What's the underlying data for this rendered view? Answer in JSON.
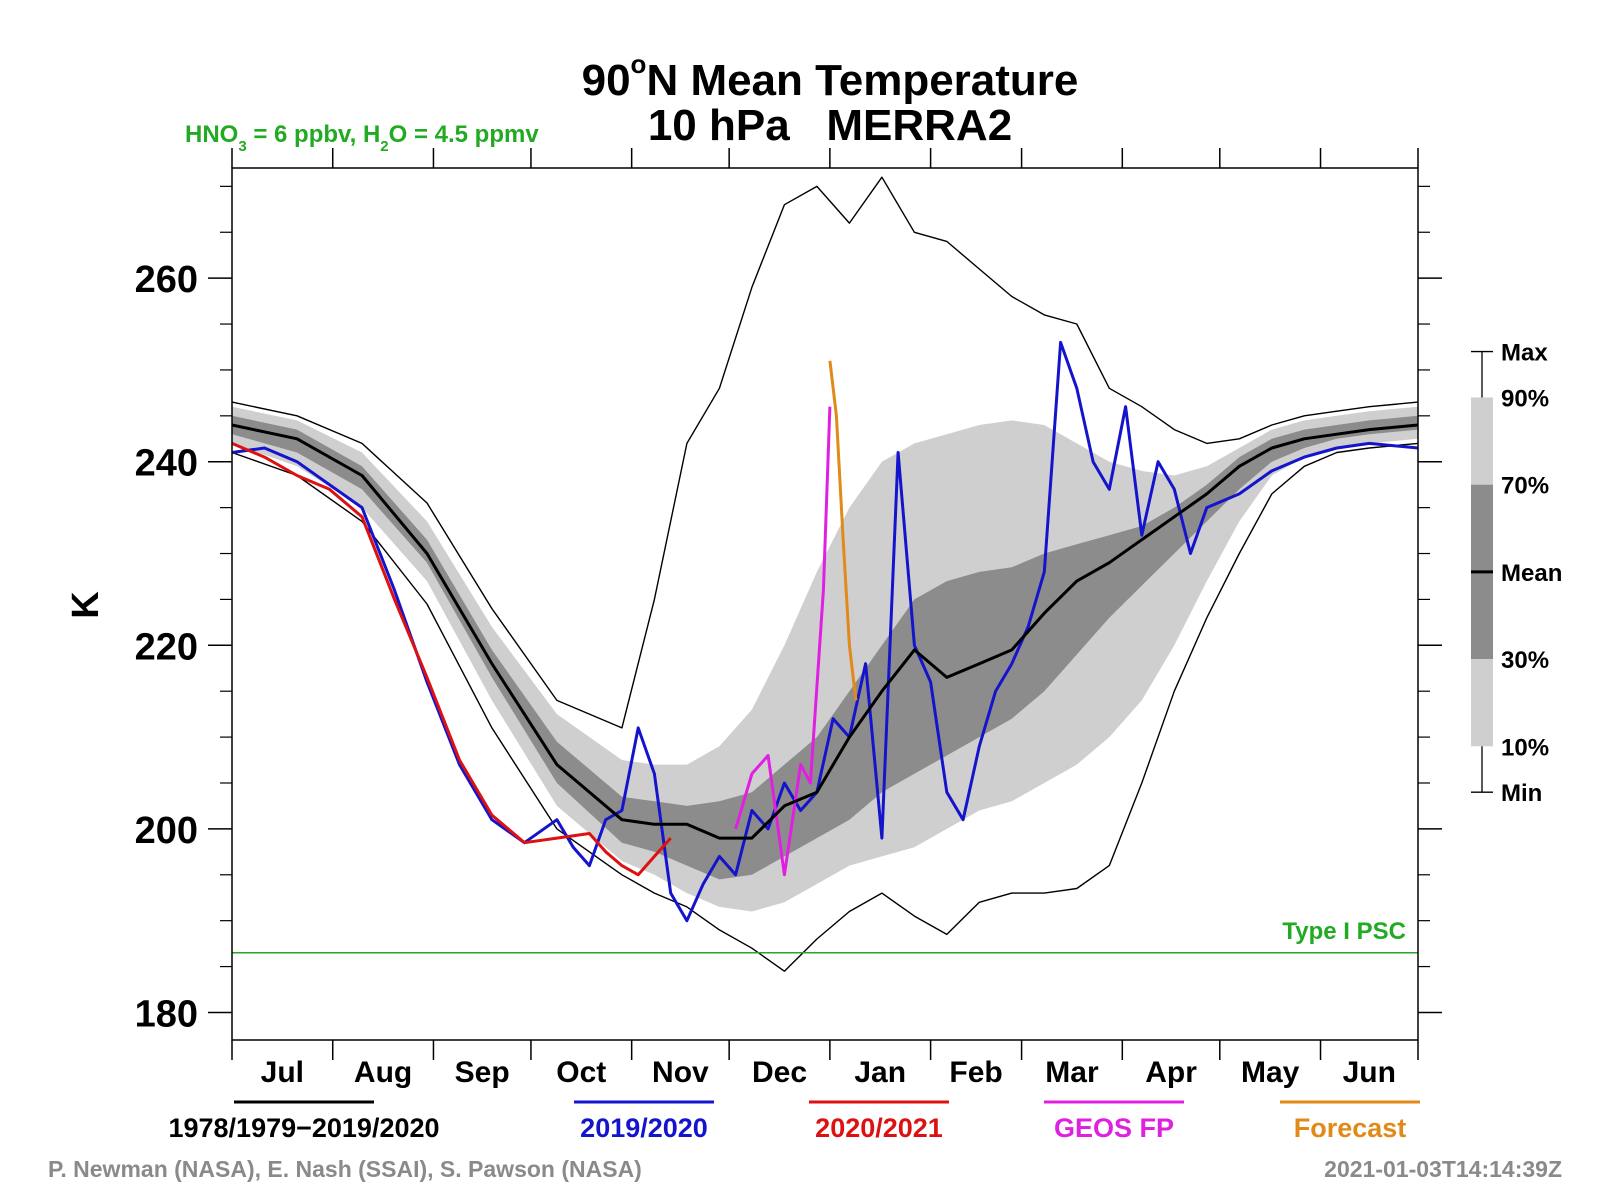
{
  "chart_data": {
    "type": "line",
    "title_line1": "90",
    "title_degree": "o",
    "title_line1_rest": "N Mean Temperature",
    "title_line2": "10 hPa   MERRA2",
    "subtitle": {
      "p1": "HNO",
      "s1": "3",
      "p2": " = 6 ppbv, H",
      "s2": "2",
      "p3": "O = 4.5 ppmv"
    },
    "ylabel": "K",
    "ylim": [
      177,
      272
    ],
    "yticks": [
      {
        "value": 180,
        "label": "180"
      },
      {
        "value": 200,
        "label": "200"
      },
      {
        "value": 220,
        "label": "220"
      },
      {
        "value": 240,
        "label": "240"
      },
      {
        "value": 260,
        "label": "260"
      }
    ],
    "x_unit": "day from 1 Jul",
    "xlim": [
      0,
      365
    ],
    "months": [
      "Jul",
      "Aug",
      "Sep",
      "Oct",
      "Nov",
      "Dec",
      "Jan",
      "Feb",
      "Mar",
      "Apr",
      "May",
      "Jun"
    ],
    "month_starts": [
      0,
      31,
      62,
      92,
      123,
      153,
      184,
      215,
      243,
      274,
      304,
      335,
      365
    ],
    "psc_threshold": {
      "value": 186.5,
      "label": "Type I PSC",
      "color": "#22aa22"
    },
    "envelope_colors": {
      "minmax": "#ffffff",
      "p10_90": "#cfcfcf",
      "p30_70": "#8c8c8c"
    },
    "climatology": {
      "x": [
        0,
        20,
        40,
        60,
        80,
        100,
        120,
        130,
        140,
        150,
        160,
        170,
        180,
        190,
        200,
        210,
        220,
        230,
        240,
        250,
        260,
        270,
        280,
        290,
        300,
        310,
        320,
        330,
        340,
        350,
        365
      ],
      "mean": [
        244,
        242.5,
        238.5,
        230,
        218,
        207,
        201,
        200.5,
        200.5,
        199,
        199,
        202.5,
        204,
        210,
        215,
        219.5,
        216.5,
        218,
        219.5,
        223.5,
        227,
        229,
        231.5,
        234,
        236.5,
        239.5,
        241.5,
        242.5,
        243,
        243.5,
        244
      ],
      "p30": [
        243,
        241,
        237,
        229,
        216.5,
        205,
        198.5,
        197.5,
        196,
        194.5,
        195,
        197,
        199,
        201,
        204,
        206,
        208,
        210,
        212,
        215,
        219,
        223,
        226.5,
        230,
        233.5,
        237,
        240,
        241.5,
        242.5,
        243,
        243.5
      ],
      "p70": [
        245,
        243.5,
        239.5,
        231.5,
        219.5,
        209.5,
        203.5,
        203,
        202.5,
        203,
        204,
        207,
        210,
        215,
        220,
        225,
        227,
        228,
        228.5,
        230,
        231,
        232,
        233,
        235,
        237.5,
        240.5,
        242.5,
        243.5,
        244,
        244.5,
        245
      ],
      "p10": [
        242,
        239.5,
        235,
        227,
        214,
        202.5,
        196.5,
        195,
        193,
        191.5,
        191,
        192,
        194,
        196,
        197,
        198,
        200,
        202,
        203,
        205,
        207,
        210,
        214,
        220,
        227,
        233.5,
        238.5,
        240.5,
        241.5,
        242,
        242.5
      ],
      "p90": [
        246,
        244.5,
        241,
        233.5,
        222,
        212.5,
        207.5,
        207,
        207,
        209,
        213,
        220,
        228,
        235,
        240,
        242,
        243,
        244,
        244.5,
        244,
        242,
        240,
        239,
        238.5,
        239.5,
        241.5,
        243.5,
        244.5,
        245,
        245.5,
        246
      ],
      "min": [
        241,
        238.5,
        233.5,
        224.5,
        211,
        200,
        195,
        193,
        191.5,
        189,
        187,
        184.5,
        188,
        191,
        193,
        190.5,
        188.5,
        192,
        193,
        193,
        193.5,
        196,
        205,
        215,
        223,
        230,
        236.5,
        239.5,
        241,
        241.5,
        242
      ],
      "max": [
        246.5,
        245,
        242,
        235.5,
        224,
        214,
        211,
        225,
        242,
        248,
        259,
        268,
        270,
        266,
        271,
        265,
        264,
        261,
        258,
        256,
        255,
        248,
        246,
        243.5,
        242,
        242.5,
        244,
        245,
        245.5,
        246,
        246.5
      ]
    },
    "series": [
      {
        "name": "1978/1979−2019/2020",
        "color": "#000000",
        "x": [
          0,
          20,
          40,
          60,
          80,
          100,
          120,
          130,
          140,
          150,
          160,
          170,
          180,
          190,
          200,
          210,
          220,
          230,
          240,
          250,
          260,
          270,
          280,
          290,
          300,
          310,
          320,
          330,
          340,
          350,
          365
        ],
        "y": [
          244,
          242.5,
          238.5,
          230,
          218,
          207,
          201,
          200.5,
          200.5,
          199,
          199,
          202.5,
          204,
          210,
          215,
          219.5,
          216.5,
          218,
          219.5,
          223.5,
          227,
          229,
          231.5,
          234,
          236.5,
          239.5,
          241.5,
          242.5,
          243,
          243.5,
          244
        ]
      },
      {
        "name": "2019/2020",
        "color": "#1414cc",
        "x": [
          0,
          10,
          20,
          30,
          40,
          50,
          60,
          70,
          80,
          90,
          100,
          105,
          110,
          115,
          120,
          125,
          130,
          135,
          140,
          145,
          150,
          155,
          160,
          165,
          170,
          175,
          180,
          185,
          190,
          195,
          200,
          205,
          210,
          215,
          220,
          225,
          230,
          235,
          240,
          245,
          250,
          255,
          260,
          265,
          270,
          275,
          280,
          285,
          290,
          295,
          300,
          310,
          320,
          330,
          340,
          350,
          365
        ],
        "y": [
          241,
          241.5,
          240,
          237.5,
          235,
          226,
          216,
          207,
          201,
          198.5,
          201,
          198,
          196,
          201,
          202,
          211,
          206,
          193,
          190,
          194,
          197,
          195,
          202,
          200,
          205,
          202,
          204,
          212,
          210,
          218,
          199,
          241,
          220,
          216,
          204,
          201,
          209,
          215,
          218,
          222,
          228,
          253,
          248,
          240,
          237,
          246,
          232,
          240,
          237,
          230,
          235,
          236.5,
          239,
          240.5,
          241.5,
          242,
          241.5
        ]
      },
      {
        "name": "2020/2021",
        "color": "#dd1111",
        "x": [
          0,
          10,
          20,
          30,
          40,
          50,
          60,
          70,
          80,
          90,
          100,
          110,
          115,
          120,
          125,
          130,
          135
        ],
        "y": [
          242,
          240.5,
          238.5,
          237,
          234,
          225,
          216.5,
          207.5,
          201.5,
          198.5,
          199,
          199.5,
          197.5,
          196,
          195,
          197,
          199
        ]
      },
      {
        "name": "GEOS FP",
        "color": "#e020e0",
        "x": [
          155,
          160,
          165,
          170,
          175,
          178,
          182,
          184
        ],
        "y": [
          200,
          206,
          208,
          195,
          207,
          205,
          226,
          246
        ]
      },
      {
        "name": "Forecast",
        "color": "#e08a1a",
        "x": [
          184,
          186,
          188,
          190,
          192
        ],
        "y": [
          251,
          245,
          232,
          220,
          214
        ]
      }
    ],
    "percentile_legend": [
      {
        "label": "Max",
        "value": 252
      },
      {
        "label": "90%",
        "value": 247
      },
      {
        "label": "70%",
        "value": 237.5
      },
      {
        "label": "Mean",
        "value": 228
      },
      {
        "label": "30%",
        "value": 218.5
      },
      {
        "label": "10%",
        "value": 209
      },
      {
        "label": "Min",
        "value": 204
      }
    ],
    "legend_placement": "bottom"
  },
  "credits": {
    "left": "P. Newman (NASA), E. Nash (SSAI), S. Pawson (NASA)",
    "right": "2021-01-03T14:14:39Z"
  }
}
